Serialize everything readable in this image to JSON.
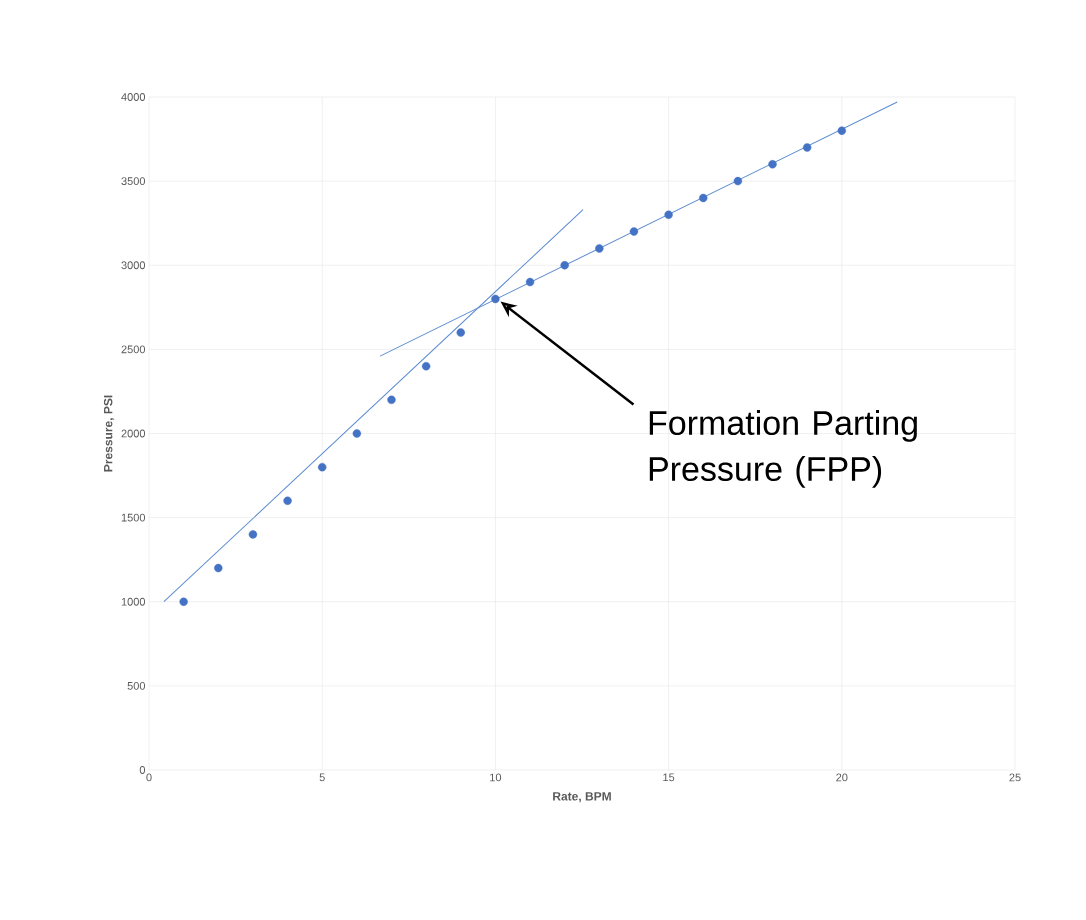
{
  "chart_data": {
    "type": "scatter",
    "xlabel": "Rate, BPM",
    "ylabel": "Pressure, PSI",
    "xlim": [
      0,
      25
    ],
    "xticks": [
      0,
      5,
      10,
      15,
      20,
      25
    ],
    "ylim": [
      0,
      4000
    ],
    "yticks": [
      0,
      500,
      1000,
      1500,
      2000,
      2500,
      3000,
      3500,
      4000
    ],
    "grid": true,
    "series": [
      {
        "color": "#4472c4",
        "marker": "circle",
        "x": [
          1,
          2,
          3,
          4,
          5,
          6,
          7,
          8,
          9,
          10,
          11,
          12,
          13,
          14,
          15,
          16,
          17,
          18,
          19,
          20
        ],
        "values": [
          1000,
          1200,
          1400,
          1600,
          1800,
          2000,
          2200,
          2400,
          2600,
          2800,
          2900,
          3000,
          3100,
          3200,
          3300,
          3400,
          3500,
          3600,
          3700,
          3800
        ]
      },
      {
        "type": "line",
        "color": "#5b8bd0",
        "marker": "none",
        "x": [
          0.43,
          12.53
        ],
        "values": [
          1000,
          3330
        ]
      },
      {
        "type": "line",
        "color": "#5b8bd0",
        "marker": "none",
        "x": [
          6.67,
          21.6
        ],
        "values": [
          2460,
          3970
        ]
      }
    ],
    "annotations": [
      "Formation Parting Pressure (FPP)"
    ]
  }
}
